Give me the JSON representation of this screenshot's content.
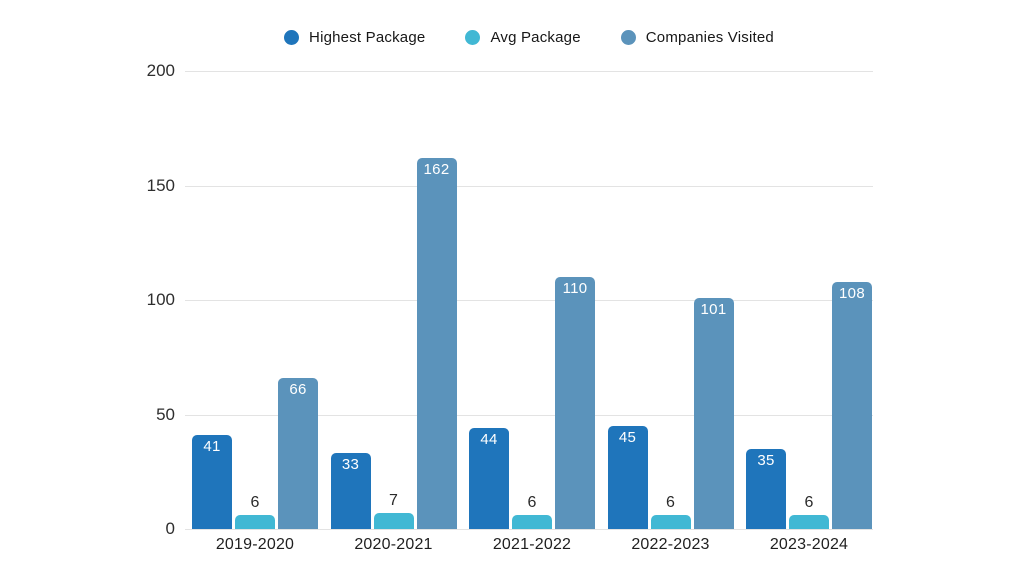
{
  "legend": [
    {
      "label": "Highest Package",
      "color": "#1F75BB"
    },
    {
      "label": "Avg Package",
      "color": "#41B8D4"
    },
    {
      "label": "Companies Visited",
      "color": "#5B93BB"
    }
  ],
  "chart_data": {
    "type": "bar",
    "title": "",
    "xlabel": "",
    "ylabel": "",
    "categories": [
      "2019-2020",
      "2020-2021",
      "2021-2022",
      "2022-2023",
      "2023-2024"
    ],
    "series": [
      {
        "name": "Highest Package",
        "color": "#1F75BB",
        "values": [
          41,
          33,
          44,
          45,
          35
        ],
        "label_position": "inside",
        "label_color": "#ffffff"
      },
      {
        "name": "Avg Package",
        "color": "#41B8D4",
        "values": [
          6,
          7,
          6,
          6,
          6
        ],
        "label_position": "above",
        "label_color": "#2b2b2b"
      },
      {
        "name": "Companies Visited",
        "color": "#5B93BB",
        "values": [
          66,
          162,
          110,
          101,
          108
        ],
        "label_position": "inside",
        "label_color": "#ffffff"
      }
    ],
    "ylim": [
      0,
      200
    ],
    "yticks": [
      0,
      50,
      100,
      150,
      200
    ],
    "grid": true,
    "legend_position": "top"
  },
  "colors": {
    "background": "#ffffff",
    "gridline": "#e3e3e3",
    "tick_label": "#2e2e2e"
  }
}
